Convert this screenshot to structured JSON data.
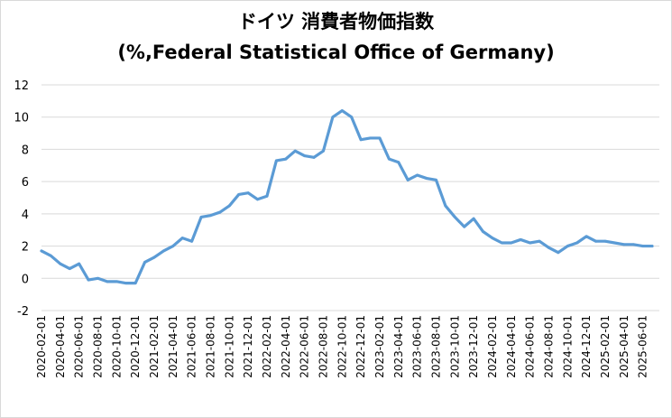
{
  "chart_data": {
    "type": "line",
    "title": "ドイツ 消費者物価指数",
    "subtitle": "(%,Federal Statistical Office of Germany)",
    "xlabel": "",
    "ylabel": "",
    "ylim": [
      -2,
      12
    ],
    "yticks": [
      -2,
      0,
      2,
      4,
      6,
      8,
      10,
      12
    ],
    "grid": "horizontal",
    "legend": "none",
    "line_color": "#5b9bd5",
    "x_tick_labels": [
      "2020-02-01",
      "2020-04-01",
      "2020-06-01",
      "2020-08-01",
      "2020-10-01",
      "2020-12-01",
      "2021-02-01",
      "2021-04-01",
      "2021-06-01",
      "2021-08-01",
      "2021-10-01",
      "2021-12-01",
      "2022-02-01",
      "2022-04-01",
      "2022-06-01",
      "2022-08-01",
      "2022-10-01",
      "2022-12-01",
      "2023-02-01",
      "2023-04-01",
      "2023-06-01",
      "2023-08-01",
      "2023-10-01",
      "2023-12-01",
      "2024-02-01",
      "2024-04-01",
      "2024-06-01",
      "2024-08-01",
      "2024-10-01",
      "2024-12-01",
      "2025-02-01",
      "2025-04-01",
      "2025-06-01"
    ],
    "x": [
      "2020-02-01",
      "2020-03-01",
      "2020-04-01",
      "2020-05-01",
      "2020-06-01",
      "2020-07-01",
      "2020-08-01",
      "2020-09-01",
      "2020-10-01",
      "2020-11-01",
      "2020-12-01",
      "2021-01-01",
      "2021-02-01",
      "2021-03-01",
      "2021-04-01",
      "2021-05-01",
      "2021-06-01",
      "2021-07-01",
      "2021-08-01",
      "2021-09-01",
      "2021-10-01",
      "2021-11-01",
      "2021-12-01",
      "2022-01-01",
      "2022-02-01",
      "2022-03-01",
      "2022-04-01",
      "2022-05-01",
      "2022-06-01",
      "2022-07-01",
      "2022-08-01",
      "2022-09-01",
      "2022-10-01",
      "2022-11-01",
      "2022-12-01",
      "2023-01-01",
      "2023-02-01",
      "2023-03-01",
      "2023-04-01",
      "2023-05-01",
      "2023-06-01",
      "2023-07-01",
      "2023-08-01",
      "2023-09-01",
      "2023-10-01",
      "2023-11-01",
      "2023-12-01",
      "2024-01-01",
      "2024-02-01",
      "2024-03-01",
      "2024-04-01",
      "2024-05-01",
      "2024-06-01",
      "2024-07-01",
      "2024-08-01",
      "2024-09-01",
      "2024-10-01",
      "2024-11-01",
      "2024-12-01",
      "2025-01-01",
      "2025-02-01",
      "2025-03-01",
      "2025-04-01",
      "2025-05-01",
      "2025-06-01",
      "2025-07-01"
    ],
    "series": [
      {
        "values": [
          1.7,
          1.4,
          0.9,
          0.6,
          0.9,
          -0.1,
          0.0,
          -0.2,
          -0.2,
          -0.3,
          -0.3,
          1.0,
          1.3,
          1.7,
          2.0,
          2.5,
          2.3,
          3.8,
          3.9,
          4.1,
          4.5,
          5.2,
          5.3,
          4.9,
          5.1,
          7.3,
          7.4,
          7.9,
          7.6,
          7.5,
          7.9,
          10.0,
          10.4,
          10.0,
          8.6,
          8.7,
          8.7,
          7.4,
          7.2,
          6.1,
          6.4,
          6.2,
          6.1,
          4.5,
          3.8,
          3.2,
          3.7,
          2.9,
          2.5,
          2.2,
          2.2,
          2.4,
          2.2,
          2.3,
          1.9,
          1.6,
          2.0,
          2.2,
          2.6,
          2.3,
          2.3,
          2.2,
          2.1,
          2.1,
          2.0,
          2.0
        ]
      }
    ]
  }
}
